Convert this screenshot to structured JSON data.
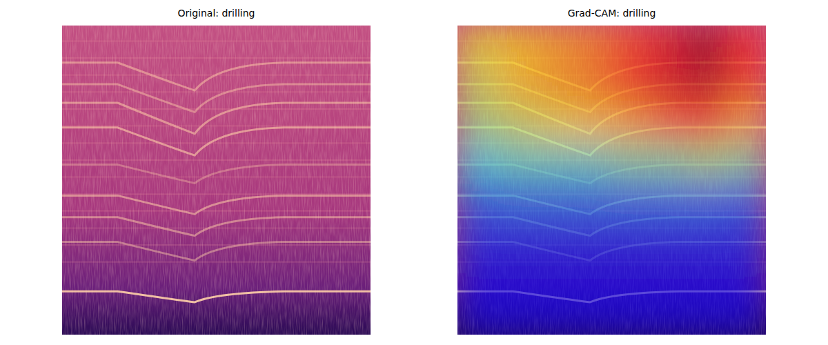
{
  "chart_data": [
    {
      "type": "image",
      "title": "Original: drilling",
      "tick_labels": false
    },
    {
      "type": "heatmap",
      "title": "Grad-CAM: drilling",
      "tick_labels": false,
      "zlim": [
        0,
        1
      ],
      "cells": [
        [
          0.55,
          0.6,
          0.65,
          0.7,
          0.8,
          0.9,
          1.0,
          0.85
        ],
        [
          0.5,
          0.6,
          0.65,
          0.7,
          0.8,
          0.9,
          0.95,
          0.8
        ],
        [
          0.45,
          0.5,
          0.55,
          0.6,
          0.65,
          0.75,
          0.8,
          0.65
        ],
        [
          0.3,
          0.35,
          0.35,
          0.35,
          0.4,
          0.4,
          0.45,
          0.4
        ],
        [
          0.12,
          0.15,
          0.15,
          0.15,
          0.15,
          0.15,
          0.15,
          0.12
        ],
        [
          0.05,
          0.05,
          0.05,
          0.05,
          0.05,
          0.05,
          0.05,
          0.05
        ],
        [
          0,
          0,
          0,
          0,
          0,
          0,
          0,
          0
        ],
        [
          0,
          0,
          0,
          0,
          0,
          0,
          0,
          0
        ]
      ]
    }
  ]
}
